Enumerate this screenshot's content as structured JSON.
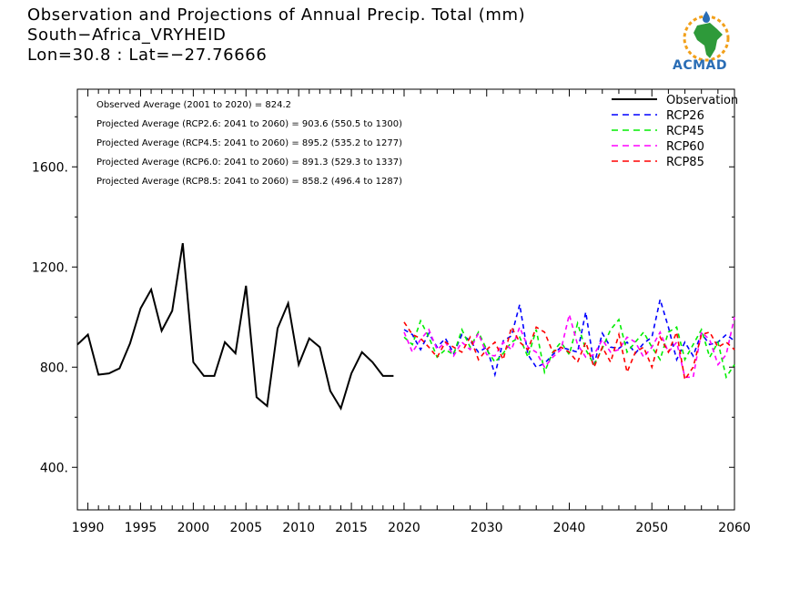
{
  "header": {
    "title_line1": "Observation and Projections of Annual Precip. Total (mm)",
    "title_line2": "South−Africa_VRYHEID",
    "title_line3": "Lon=30.8 : Lat=−27.76666"
  },
  "logo": {
    "text": "ACMAD",
    "icon": "africa-logo-icon"
  },
  "stats": [
    "Observed Average (2001 to 2020) = 824.2",
    "Projected Average (RCP2.6: 2041 to 2060) = 903.6 (550.5 to 1300)",
    "Projected Average (RCP4.5: 2041 to 2060) = 895.2 (535.2 to 1277)",
    "Projected Average (RCP6.0: 2041 to 2060) = 891.3 (529.3 to 1337)",
    "Projected Average (RCP8.5: 2041 to 2060) = 858.2 (496.4 to 1287)"
  ],
  "chart_data": {
    "type": "line",
    "title": "Observation and Projections of Annual Precip. Total (mm)",
    "xlabel": "",
    "ylabel": "",
    "xlim": [
      1989,
      2060
    ],
    "ylim": [
      230,
      1910
    ],
    "y_ticks": [
      400,
      800,
      1200,
      1600
    ],
    "y_tick_labels": [
      "400.",
      "800.",
      "1200.",
      "1600."
    ],
    "x_ticks_left": [
      1990,
      1995,
      2000,
      2005,
      2010,
      2015,
      2020
    ],
    "x_ticks_right": [
      2030,
      2040,
      2050,
      2060
    ],
    "x_tick_labels": [
      "1990",
      "1995",
      "2000",
      "2005",
      "2010",
      "2015",
      "2020",
      "2030",
      "2040",
      "2050",
      "2060"
    ],
    "axis_break_year": 2020,
    "legend_position": "top-right",
    "grid": false,
    "series": [
      {
        "name": "Observation",
        "color": "#000000",
        "style": "solid",
        "x": [
          1989,
          1990,
          1991,
          1992,
          1993,
          1994,
          1995,
          1996,
          1997,
          1998,
          1999,
          2000,
          2001,
          2002,
          2003,
          2004,
          2005,
          2006,
          2007,
          2008,
          2009,
          2010,
          2011,
          2012,
          2013,
          2014,
          2015,
          2016,
          2017,
          2018,
          2019
        ],
        "values": [
          890,
          930,
          770,
          775,
          795,
          895,
          1035,
          1110,
          945,
          1025,
          1295,
          820,
          765,
          765,
          900,
          855,
          1125,
          680,
          645,
          955,
          1055,
          810,
          915,
          880,
          705,
          635,
          775,
          860,
          820,
          765,
          765
        ]
      },
      {
        "name": "RCP26",
        "color": "#0000ff",
        "style": "dashed",
        "x": [
          2020,
          2021,
          2022,
          2023,
          2024,
          2025,
          2026,
          2027,
          2028,
          2029,
          2030,
          2031,
          2032,
          2033,
          2034,
          2035,
          2036,
          2037,
          2038,
          2039,
          2040,
          2041,
          2042,
          2043,
          2044,
          2045,
          2046,
          2047,
          2048,
          2049,
          2050,
          2051,
          2052,
          2053,
          2054,
          2055,
          2056,
          2057,
          2058,
          2059,
          2060
        ],
        "values": [
          950,
          930,
          870,
          935,
          880,
          915,
          855,
          930,
          905,
          860,
          880,
          770,
          905,
          925,
          1050,
          850,
          800,
          815,
          850,
          880,
          870,
          860,
          1020,
          810,
          935,
          880,
          875,
          900,
          855,
          895,
          920,
          1070,
          960,
          830,
          900,
          845,
          935,
          890,
          900,
          930,
          905
        ]
      },
      {
        "name": "RCP45",
        "color": "#00ee00",
        "style": "dashed",
        "x": [
          2020,
          2021,
          2022,
          2023,
          2024,
          2025,
          2026,
          2027,
          2028,
          2029,
          2030,
          2031,
          2032,
          2033,
          2034,
          2035,
          2036,
          2037,
          2038,
          2039,
          2040,
          2041,
          2042,
          2043,
          2044,
          2045,
          2046,
          2047,
          2048,
          2049,
          2050,
          2051,
          2052,
          2053,
          2054,
          2055,
          2056,
          2057,
          2058,
          2059,
          2060
        ],
        "values": [
          920,
          890,
          985,
          920,
          840,
          870,
          850,
          950,
          880,
          940,
          870,
          820,
          855,
          900,
          920,
          840,
          950,
          780,
          860,
          900,
          850,
          975,
          870,
          810,
          875,
          950,
          990,
          860,
          900,
          940,
          880,
          830,
          940,
          960,
          830,
          890,
          950,
          840,
          900,
          760,
          810
        ]
      },
      {
        "name": "RCP60",
        "color": "#ff00ff",
        "style": "dashed",
        "x": [
          2020,
          2021,
          2022,
          2023,
          2024,
          2025,
          2026,
          2027,
          2028,
          2029,
          2030,
          2031,
          2032,
          2033,
          2034,
          2035,
          2036,
          2037,
          2038,
          2039,
          2040,
          2041,
          2042,
          2043,
          2044,
          2045,
          2046,
          2047,
          2048,
          2049,
          2050,
          2051,
          2052,
          2053,
          2054,
          2055,
          2056,
          2057,
          2058,
          2059,
          2060
        ],
        "values": [
          940,
          860,
          910,
          950,
          870,
          900,
          845,
          900,
          870,
          935,
          850,
          845,
          900,
          870,
          960,
          880,
          860,
          800,
          840,
          870,
          1010,
          890,
          840,
          850,
          910,
          860,
          870,
          920,
          900,
          840,
          880,
          940,
          860,
          900,
          760,
          760,
          940,
          910,
          810,
          850,
          1000
        ]
      },
      {
        "name": "RCP85",
        "color": "#ff0000",
        "style": "dashed",
        "x": [
          2020,
          2021,
          2022,
          2023,
          2024,
          2025,
          2026,
          2027,
          2028,
          2029,
          2030,
          2031,
          2032,
          2033,
          2034,
          2035,
          2036,
          2037,
          2038,
          2039,
          2040,
          2041,
          2042,
          2043,
          2044,
          2045,
          2046,
          2047,
          2048,
          2049,
          2050,
          2051,
          2052,
          2053,
          2054,
          2055,
          2056,
          2057,
          2058,
          2059,
          2060
        ],
        "values": [
          980,
          930,
          915,
          880,
          840,
          900,
          880,
          860,
          920,
          830,
          870,
          900,
          830,
          960,
          900,
          870,
          960,
          940,
          860,
          880,
          860,
          820,
          900,
          800,
          880,
          820,
          930,
          780,
          860,
          880,
          800,
          920,
          860,
          940,
          750,
          800,
          930,
          940,
          880,
          900,
          870
        ]
      }
    ]
  }
}
